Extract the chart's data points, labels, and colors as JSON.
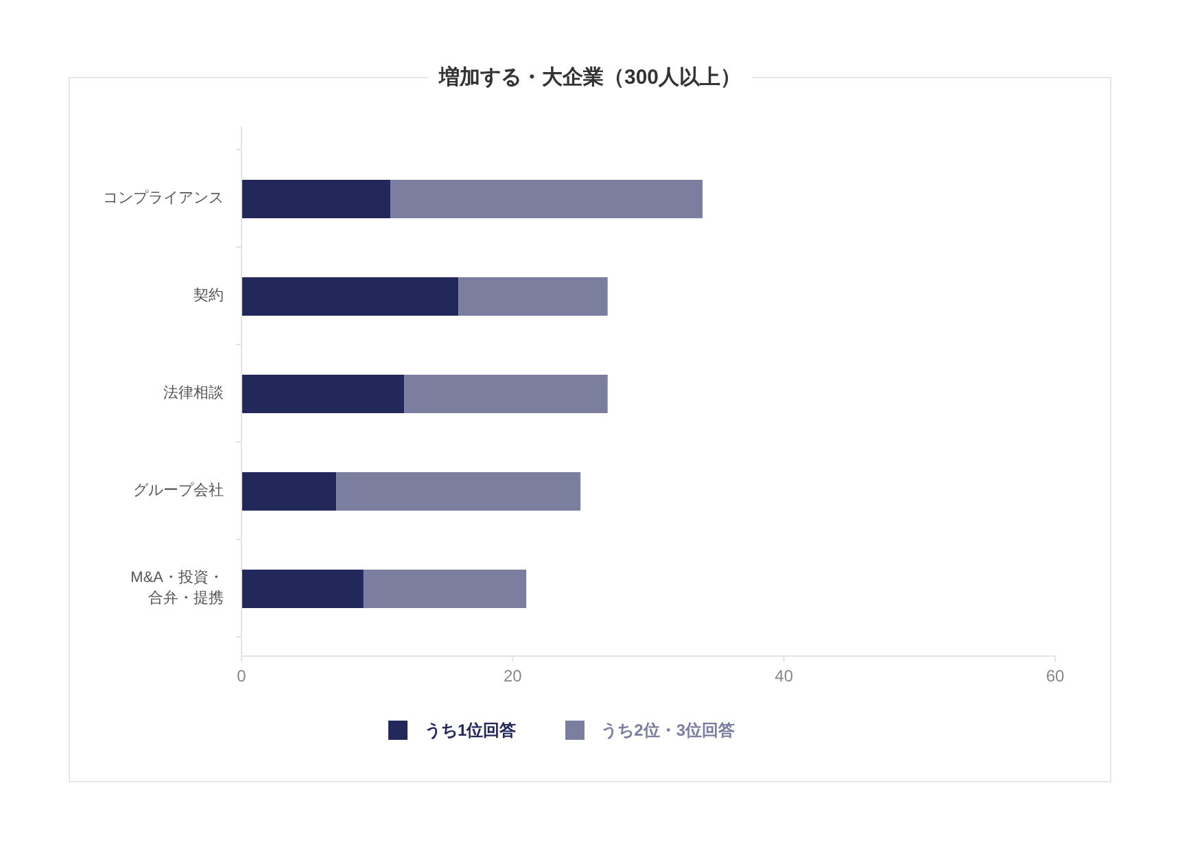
{
  "chart_data": {
    "type": "bar",
    "title": "増加する・大企業（300人以上）",
    "categories": [
      "コンプライアンス",
      "契約",
      "法律相談",
      "グループ会社",
      "M&A・投資・合弁・提携"
    ],
    "series": [
      {
        "name": "うち1位回答",
        "color": "#23285a",
        "values": [
          11,
          16,
          12,
          7,
          9
        ]
      },
      {
        "name": "うち2位・3位回答",
        "color": "#7b7e9e",
        "values": [
          23,
          11,
          15,
          18,
          12
        ]
      }
    ],
    "stacked": true,
    "orientation": "horizontal",
    "xlim": [
      0,
      60
    ],
    "xticks": [
      0,
      20,
      40,
      60
    ],
    "legend": "bottom"
  }
}
